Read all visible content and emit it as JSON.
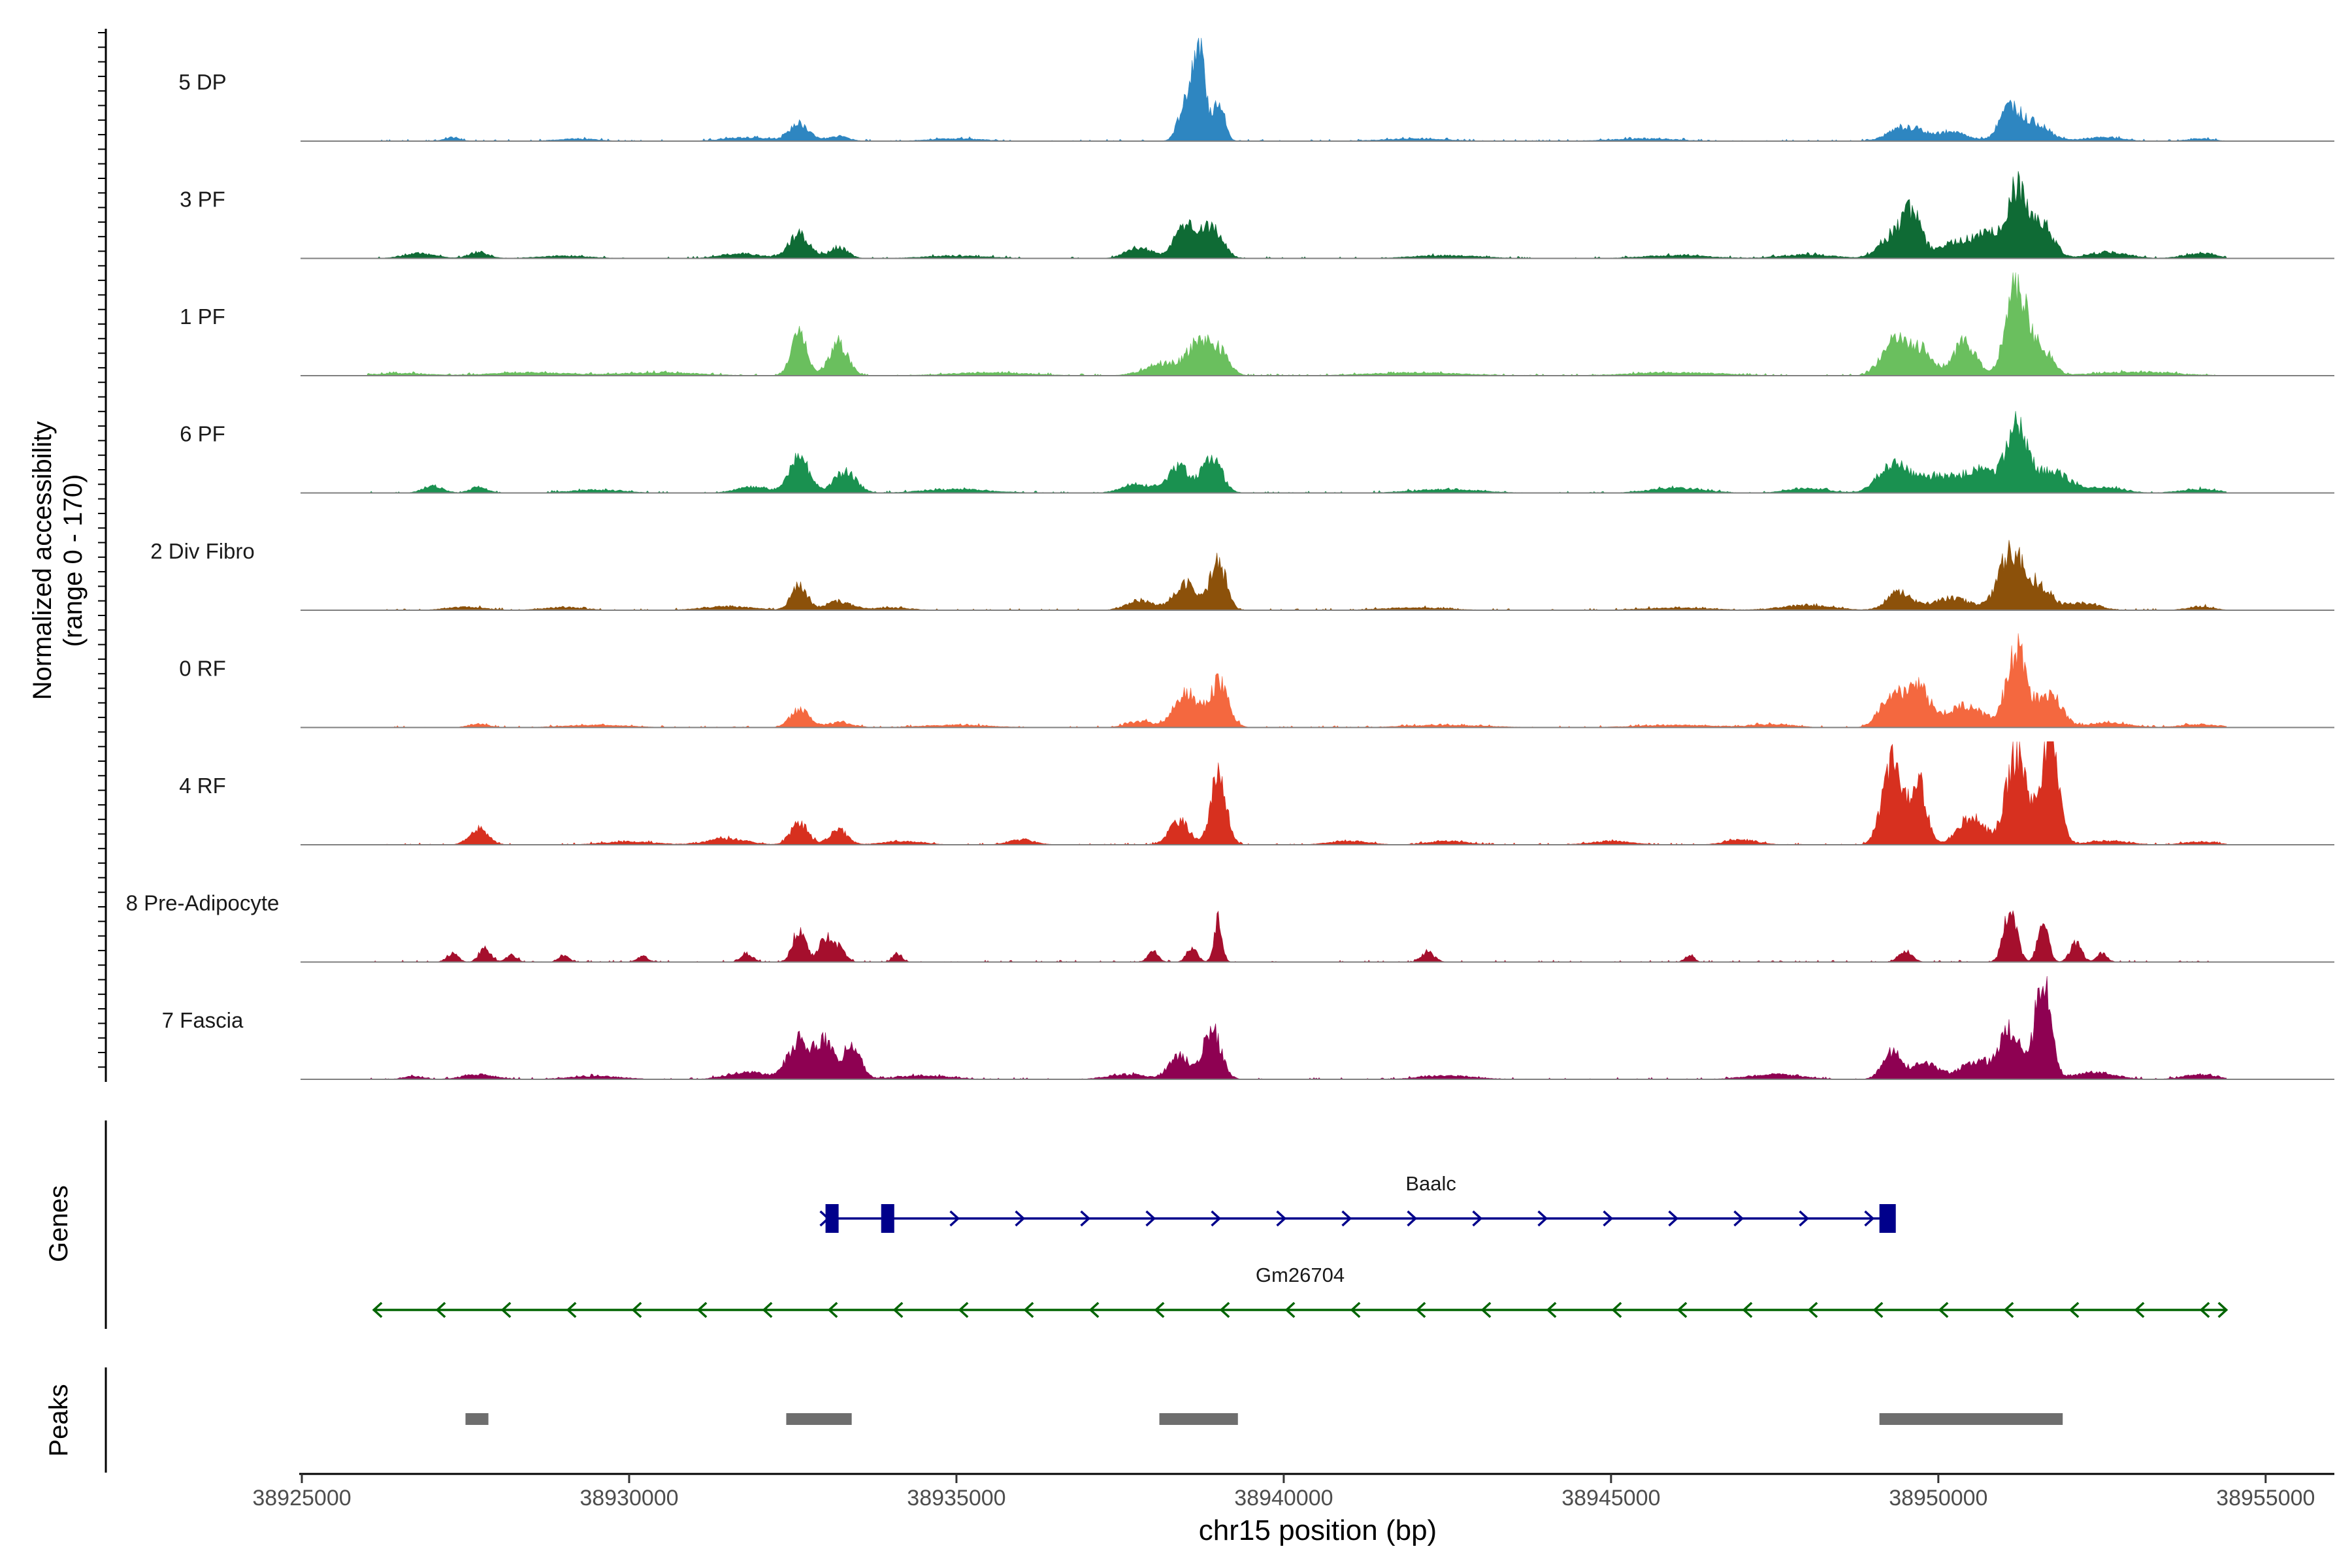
{
  "chart_data": {
    "type": "area",
    "title": "",
    "xlabel": "chr15 position (bp)",
    "ylabel_line1": "Normalized accessibility",
    "ylabel_line2": "(range 0 - 170)",
    "yrange": [
      0,
      170
    ],
    "xlim": [
      38925000,
      38956000
    ],
    "x_ticks": [
      38925000,
      38930000,
      38935000,
      38940000,
      38945000,
      38950000,
      38955000
    ],
    "x_tick_labels": [
      "38925000",
      "38930000",
      "38935000",
      "38940000",
      "38945000",
      "38950000",
      "38955000"
    ],
    "coverage_extent": [
      38926000,
      38954400
    ],
    "series": [
      {
        "name": "5 DP",
        "color": "#2e86c1",
        "peaks": [
          [
            38927300,
            6,
            120
          ],
          [
            38929200,
            4,
            300
          ],
          [
            38931800,
            6,
            350
          ],
          [
            38932600,
            28,
            150
          ],
          [
            38933200,
            8,
            150
          ],
          [
            38935000,
            4,
            400
          ],
          [
            38938500,
            60,
            110
          ],
          [
            38938700,
            155,
            90
          ],
          [
            38939000,
            70,
            90
          ],
          [
            38942000,
            4,
            500
          ],
          [
            38945500,
            4,
            500
          ],
          [
            38949500,
            22,
            250
          ],
          [
            38950200,
            14,
            250
          ],
          [
            38951100,
            55,
            160
          ],
          [
            38951500,
            28,
            200
          ],
          [
            38952500,
            6,
            300
          ],
          [
            38954000,
            4,
            200
          ]
        ]
      },
      {
        "name": "3 PF",
        "color": "#0f6b35",
        "peaks": [
          [
            38926800,
            8,
            250
          ],
          [
            38927700,
            10,
            150
          ],
          [
            38929000,
            4,
            400
          ],
          [
            38931700,
            8,
            300
          ],
          [
            38932600,
            40,
            160
          ],
          [
            38933200,
            18,
            140
          ],
          [
            38935000,
            4,
            500
          ],
          [
            38937800,
            18,
            200
          ],
          [
            38938500,
            55,
            160
          ],
          [
            38938900,
            52,
            160
          ],
          [
            38942500,
            5,
            500
          ],
          [
            38946000,
            5,
            500
          ],
          [
            38948000,
            6,
            400
          ],
          [
            38949300,
            35,
            200
          ],
          [
            38949600,
            65,
            140
          ],
          [
            38950300,
            28,
            300
          ],
          [
            38950800,
            32,
            200
          ],
          [
            38951200,
            110,
            150
          ],
          [
            38951600,
            55,
            160
          ],
          [
            38952600,
            10,
            300
          ],
          [
            38954000,
            8,
            250
          ]
        ]
      },
      {
        "name": "1 PF",
        "color": "#6abf5e",
        "peaks": [
          [
            38926500,
            4,
            400
          ],
          [
            38928500,
            5,
            600
          ],
          [
            38930500,
            5,
            600
          ],
          [
            38932600,
            70,
            120
          ],
          [
            38933200,
            55,
            140
          ],
          [
            38935500,
            5,
            600
          ],
          [
            38938200,
            20,
            300
          ],
          [
            38938700,
            48,
            160
          ],
          [
            38939000,
            40,
            150
          ],
          [
            38942000,
            5,
            700
          ],
          [
            38946000,
            5,
            700
          ],
          [
            38949300,
            52,
            180
          ],
          [
            38949700,
            45,
            200
          ],
          [
            38950400,
            55,
            170
          ],
          [
            38951200,
            150,
            160
          ],
          [
            38951600,
            40,
            150
          ],
          [
            38953000,
            6,
            600
          ]
        ]
      },
      {
        "name": "6 PF",
        "color": "#1a9150",
        "peaks": [
          [
            38927000,
            12,
            150
          ],
          [
            38927700,
            10,
            130
          ],
          [
            38929500,
            5,
            400
          ],
          [
            38931900,
            10,
            250
          ],
          [
            38932600,
            60,
            150
          ],
          [
            38933300,
            35,
            170
          ],
          [
            38935000,
            6,
            500
          ],
          [
            38937800,
            14,
            250
          ],
          [
            38938400,
            42,
            150
          ],
          [
            38938900,
            60,
            150
          ],
          [
            38942500,
            6,
            500
          ],
          [
            38946000,
            8,
            400
          ],
          [
            38948000,
            8,
            300
          ],
          [
            38949300,
            45,
            220
          ],
          [
            38950000,
            28,
            350
          ],
          [
            38950700,
            35,
            250
          ],
          [
            38951200,
            100,
            150
          ],
          [
            38951700,
            35,
            300
          ],
          [
            38952600,
            8,
            250
          ],
          [
            38954000,
            6,
            300
          ]
        ]
      },
      {
        "name": "2 Div Fibro",
        "color": "#8c510a",
        "peaks": [
          [
            38927500,
            5,
            300
          ],
          [
            38929000,
            5,
            300
          ],
          [
            38931500,
            6,
            400
          ],
          [
            38932600,
            42,
            120
          ],
          [
            38933200,
            14,
            200
          ],
          [
            38934000,
            4,
            300
          ],
          [
            38937800,
            16,
            200
          ],
          [
            38938500,
            45,
            180
          ],
          [
            38939000,
            78,
            120
          ],
          [
            38942000,
            4,
            500
          ],
          [
            38946000,
            4,
            500
          ],
          [
            38948000,
            8,
            400
          ],
          [
            38949400,
            30,
            180
          ],
          [
            38950200,
            20,
            300
          ],
          [
            38951100,
            90,
            180
          ],
          [
            38951500,
            40,
            200
          ],
          [
            38952200,
            12,
            250
          ],
          [
            38954000,
            6,
            200
          ]
        ]
      },
      {
        "name": "0 RF",
        "color": "#f4683f",
        "peaks": [
          [
            38927700,
            6,
            150
          ],
          [
            38929500,
            4,
            500
          ],
          [
            38932600,
            30,
            140
          ],
          [
            38933200,
            8,
            200
          ],
          [
            38935000,
            4,
            500
          ],
          [
            38937800,
            10,
            200
          ],
          [
            38938500,
            58,
            170
          ],
          [
            38939000,
            72,
            150
          ],
          [
            38942500,
            4,
            600
          ],
          [
            38946000,
            4,
            600
          ],
          [
            38947500,
            5,
            300
          ],
          [
            38949300,
            55,
            180
          ],
          [
            38949700,
            62,
            160
          ],
          [
            38950400,
            35,
            300
          ],
          [
            38951200,
            125,
            150
          ],
          [
            38951700,
            55,
            180
          ],
          [
            38952600,
            8,
            300
          ],
          [
            38954000,
            5,
            300
          ]
        ]
      },
      {
        "name": "4 RF",
        "color": "#d7301f",
        "peaks": [
          [
            38927700,
            28,
            140
          ],
          [
            38930000,
            5,
            400
          ],
          [
            38931500,
            10,
            300
          ],
          [
            38932600,
            36,
            130
          ],
          [
            38933200,
            24,
            140
          ],
          [
            38934200,
            6,
            300
          ],
          [
            38936000,
            8,
            200
          ],
          [
            38938400,
            40,
            150
          ],
          [
            38939000,
            110,
            120
          ],
          [
            38941000,
            6,
            300
          ],
          [
            38942500,
            6,
            300
          ],
          [
            38945000,
            6,
            300
          ],
          [
            38947000,
            8,
            250
          ],
          [
            38949300,
            135,
            150
          ],
          [
            38949700,
            100,
            120
          ],
          [
            38950500,
            45,
            200
          ],
          [
            38951200,
            150,
            160
          ],
          [
            38951700,
            180,
            130
          ],
          [
            38952600,
            6,
            300
          ],
          [
            38954000,
            5,
            250
          ]
        ]
      },
      {
        "name": "8 Pre-Adipocyte",
        "color": "#a50f2d",
        "peaks": [
          [
            38927300,
            14,
            90
          ],
          [
            38927800,
            22,
            90
          ],
          [
            38928200,
            12,
            80
          ],
          [
            38929000,
            10,
            80
          ],
          [
            38930200,
            10,
            80
          ],
          [
            38931800,
            14,
            90
          ],
          [
            38932600,
            55,
            100
          ],
          [
            38933000,
            38,
            100
          ],
          [
            38933200,
            22,
            100
          ],
          [
            38934100,
            14,
            70
          ],
          [
            38938000,
            18,
            80
          ],
          [
            38938600,
            24,
            80
          ],
          [
            38939000,
            70,
            60
          ],
          [
            38942200,
            16,
            100
          ],
          [
            38946200,
            12,
            70
          ],
          [
            38949500,
            18,
            100
          ],
          [
            38951100,
            85,
            100
          ],
          [
            38951600,
            68,
            80
          ],
          [
            38952100,
            30,
            90
          ],
          [
            38952500,
            14,
            80
          ]
        ]
      },
      {
        "name": "7 Fascia",
        "color": "#8e0152",
        "peaks": [
          [
            38926700,
            5,
            150
          ],
          [
            38927700,
            8,
            250
          ],
          [
            38929500,
            5,
            400
          ],
          [
            38931800,
            12,
            300
          ],
          [
            38932600,
            65,
            170
          ],
          [
            38933000,
            60,
            130
          ],
          [
            38933400,
            52,
            140
          ],
          [
            38934500,
            6,
            400
          ],
          [
            38937600,
            8,
            300
          ],
          [
            38938400,
            40,
            150
          ],
          [
            38938900,
            82,
            140
          ],
          [
            38942500,
            6,
            400
          ],
          [
            38947500,
            8,
            400
          ],
          [
            38949300,
            42,
            150
          ],
          [
            38949800,
            25,
            200
          ],
          [
            38950600,
            30,
            250
          ],
          [
            38951100,
            82,
            150
          ],
          [
            38951600,
            168,
            120
          ],
          [
            38952400,
            12,
            300
          ],
          [
            38954000,
            8,
            250
          ]
        ]
      }
    ]
  },
  "genes": {
    "panel_label": "Genes",
    "items": [
      {
        "name": "Baalc",
        "start": 38933000,
        "end": 38949300,
        "strand": "+",
        "color": "#00008b",
        "exons": [
          [
            38933000,
            38933200
          ],
          [
            38933850,
            38934050
          ],
          [
            38949100,
            38949350
          ]
        ]
      },
      {
        "name": "Gm26704",
        "start": 38926100,
        "end": 38954400,
        "strand": "-",
        "color": "#006400",
        "exons": []
      }
    ]
  },
  "peaks_track": {
    "panel_label": "Peaks",
    "color": "#6e6e6e",
    "regions": [
      [
        38927500,
        38927850
      ],
      [
        38932400,
        38933400
      ],
      [
        38938100,
        38939300
      ],
      [
        38949100,
        38951900
      ]
    ]
  }
}
